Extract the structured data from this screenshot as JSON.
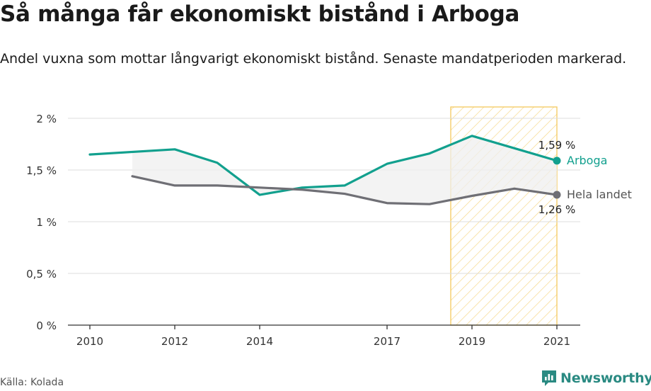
{
  "title": "Så många får ekonomiskt bistånd i Arboga",
  "subtitle": "Andel vuxna som mottar långvarigt ekonomiskt bistånd. Senaste mandatperioden markerad.",
  "source": "Källa: Kolada",
  "brand": {
    "name": "Newsworthy",
    "icon": "newsworthy-logo-icon"
  },
  "colors": {
    "arboga": "#12a08e",
    "national": "#6f6f75",
    "highlight_stroke": "#f4c95d",
    "highlight_hatch": "#f6d98c",
    "grid": "#dddddd",
    "fill_between": "#efefef"
  },
  "chart_data": {
    "type": "line",
    "x": [
      2010,
      2011,
      2012,
      2013,
      2014,
      2015,
      2016,
      2017,
      2018,
      2019,
      2020,
      2021
    ],
    "x_ticks": [
      2010,
      2012,
      2014,
      2017,
      2019,
      2021
    ],
    "x_tick_labels": [
      "2010",
      "2012",
      "2014",
      "2017",
      "2019",
      "2021"
    ],
    "y_ticks": [
      0,
      0.5,
      1,
      1.5,
      2
    ],
    "y_tick_labels": [
      "0 %",
      "0,5 %",
      "1 %",
      "1,5 %",
      "2 %"
    ],
    "ylim": [
      0,
      2
    ],
    "xlim": [
      2009.5,
      2021.5
    ],
    "grid": true,
    "series": [
      {
        "name": "Arboga",
        "values": [
          1.65,
          null,
          1.7,
          1.57,
          1.26,
          1.33,
          1.35,
          1.56,
          1.66,
          1.83,
          1.71,
          1.59
        ],
        "end_label": "1,59 %",
        "color_key": "arboga"
      },
      {
        "name": "Hela landet",
        "values": [
          null,
          1.44,
          1.35,
          1.35,
          1.33,
          1.31,
          1.27,
          1.18,
          1.17,
          1.25,
          1.32,
          1.26
        ],
        "end_label": "1,26 %",
        "color_key": "national"
      }
    ],
    "highlight": {
      "from": 2018.5,
      "to": 2021,
      "label": "Senaste mandatperioden"
    }
  }
}
